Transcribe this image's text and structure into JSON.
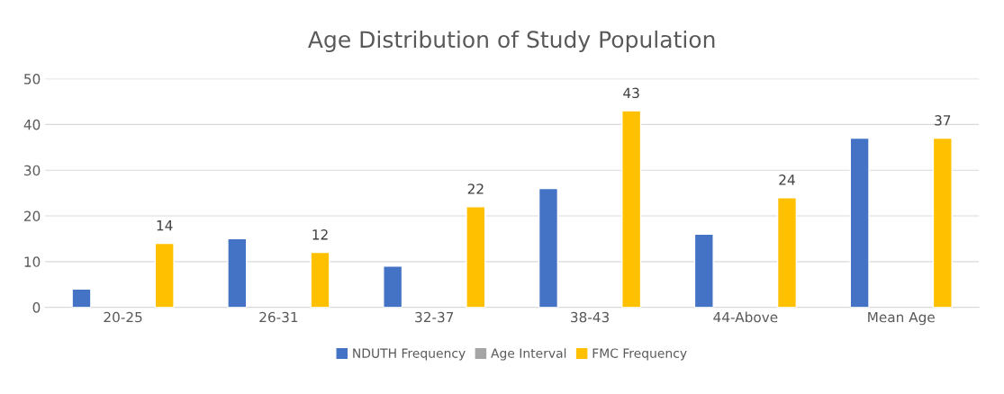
{
  "chart_data": {
    "type": "bar",
    "title": "Age Distribution of Study Population",
    "categories": [
      "20-25",
      "26-31",
      "32-37",
      "38-43",
      "44-Above",
      "Mean Age"
    ],
    "series": [
      {
        "name": "NDUTH Frequency",
        "color": "#4472c4",
        "values": [
          4,
          15,
          9,
          26,
          16,
          37
        ]
      },
      {
        "name": "Age Interval",
        "color": "#a5a5a5",
        "values": [
          null,
          null,
          null,
          null,
          null,
          null
        ]
      },
      {
        "name": "FMC Frequency",
        "color": "#ffc000",
        "values": [
          14,
          12,
          22,
          43,
          24,
          37
        ],
        "value_labels": [
          "14",
          "12",
          "22",
          "43",
          "24",
          "37"
        ]
      }
    ],
    "ylim": [
      0,
      50
    ],
    "yticks": [
      0,
      10,
      20,
      30,
      40,
      50
    ],
    "grid": "y",
    "legend": "bottom"
  }
}
